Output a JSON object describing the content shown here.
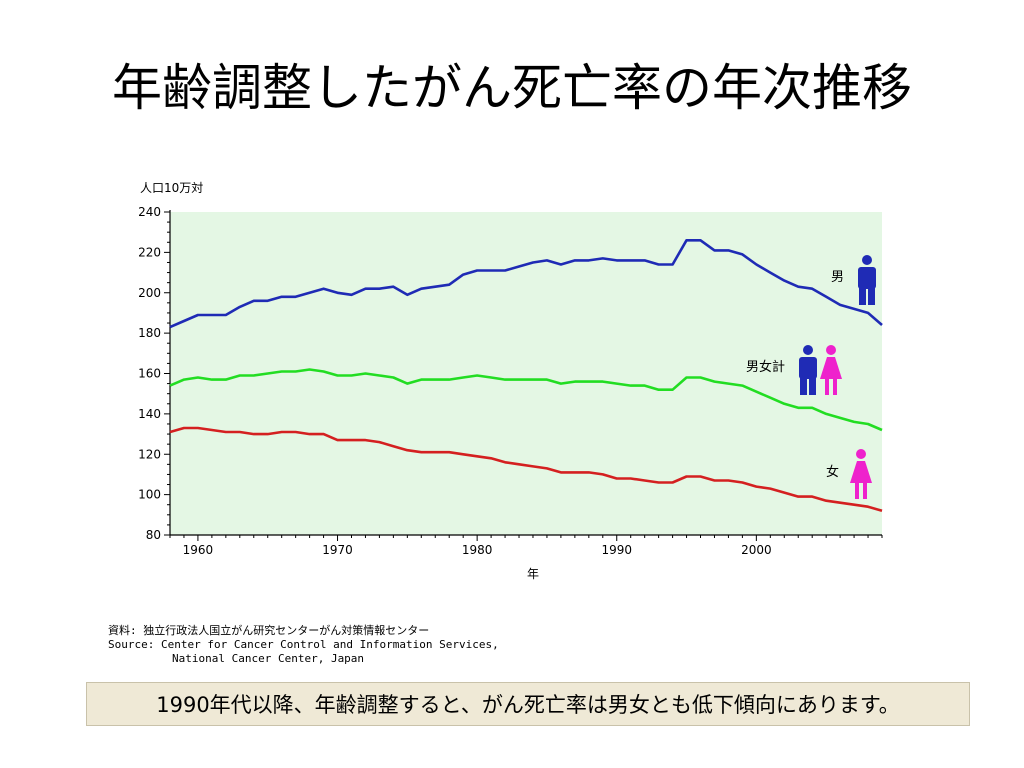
{
  "slide": {
    "title": "年齢調整したがん死亡率の年次推移",
    "source_lines": [
      "資料: 独立行政法人国立がん研究センターがん対策情報センター",
      "Source: Center for Cancer Control and Information Services,",
      "National Cancer Center, Japan"
    ],
    "note": "1990年代以降、年齢調整すると、がん死亡率は男女とも低下傾向にあります。"
  },
  "chart_data": {
    "type": "line",
    "ylabel": "人口10万対",
    "xlabel": "年",
    "xlim": [
      1958,
      2009
    ],
    "ylim": [
      80,
      240
    ],
    "x_ticks": [
      1960,
      1970,
      1980,
      1990,
      2000
    ],
    "y_ticks": [
      80,
      100,
      120,
      140,
      160,
      180,
      200,
      220,
      240
    ],
    "grid": false,
    "plot_background": "#e4f7e4",
    "x": [
      1958,
      1959,
      1960,
      1961,
      1962,
      1963,
      1964,
      1965,
      1966,
      1967,
      1968,
      1969,
      1970,
      1971,
      1972,
      1973,
      1974,
      1975,
      1976,
      1977,
      1978,
      1979,
      1980,
      1981,
      1982,
      1983,
      1984,
      1985,
      1986,
      1987,
      1988,
      1989,
      1990,
      1991,
      1992,
      1993,
      1994,
      1995,
      1996,
      1997,
      1998,
      1999,
      2000,
      2001,
      2002,
      2003,
      2004,
      2005,
      2006,
      2007,
      2008,
      2009
    ],
    "series": [
      {
        "name": "男",
        "color": "#1f2bb5",
        "icon": "male-figure-icon",
        "values": [
          183,
          186,
          189,
          189,
          189,
          193,
          196,
          196,
          198,
          198,
          200,
          202,
          200,
          199,
          202,
          202,
          203,
          199,
          202,
          203,
          204,
          209,
          211,
          211,
          211,
          213,
          215,
          216,
          214,
          216,
          216,
          217,
          216,
          216,
          216,
          214,
          214,
          226,
          226,
          221,
          221,
          219,
          214,
          210,
          206,
          203,
          202,
          198,
          194,
          192,
          190,
          184
        ]
      },
      {
        "name": "男女計",
        "color": "#22dd22",
        "icon": "male-female-figures-icon",
        "values": [
          154,
          157,
          158,
          157,
          157,
          159,
          159,
          160,
          161,
          161,
          162,
          161,
          159,
          159,
          160,
          159,
          158,
          155,
          157,
          157,
          157,
          158,
          159,
          158,
          157,
          157,
          157,
          157,
          155,
          156,
          156,
          156,
          155,
          154,
          154,
          152,
          152,
          158,
          158,
          156,
          155,
          154,
          151,
          148,
          145,
          143,
          143,
          140,
          138,
          136,
          135,
          132
        ]
      },
      {
        "name": "女",
        "color": "#d42020",
        "icon": "female-figure-icon",
        "values": [
          131,
          133,
          133,
          132,
          131,
          131,
          130,
          130,
          131,
          131,
          130,
          130,
          127,
          127,
          127,
          126,
          124,
          122,
          121,
          121,
          121,
          120,
          119,
          118,
          116,
          115,
          114,
          113,
          111,
          111,
          111,
          110,
          108,
          108,
          107,
          106,
          106,
          109,
          109,
          107,
          107,
          106,
          104,
          103,
          101,
          99,
          99,
          97,
          96,
          95,
          94,
          92
        ]
      }
    ]
  }
}
